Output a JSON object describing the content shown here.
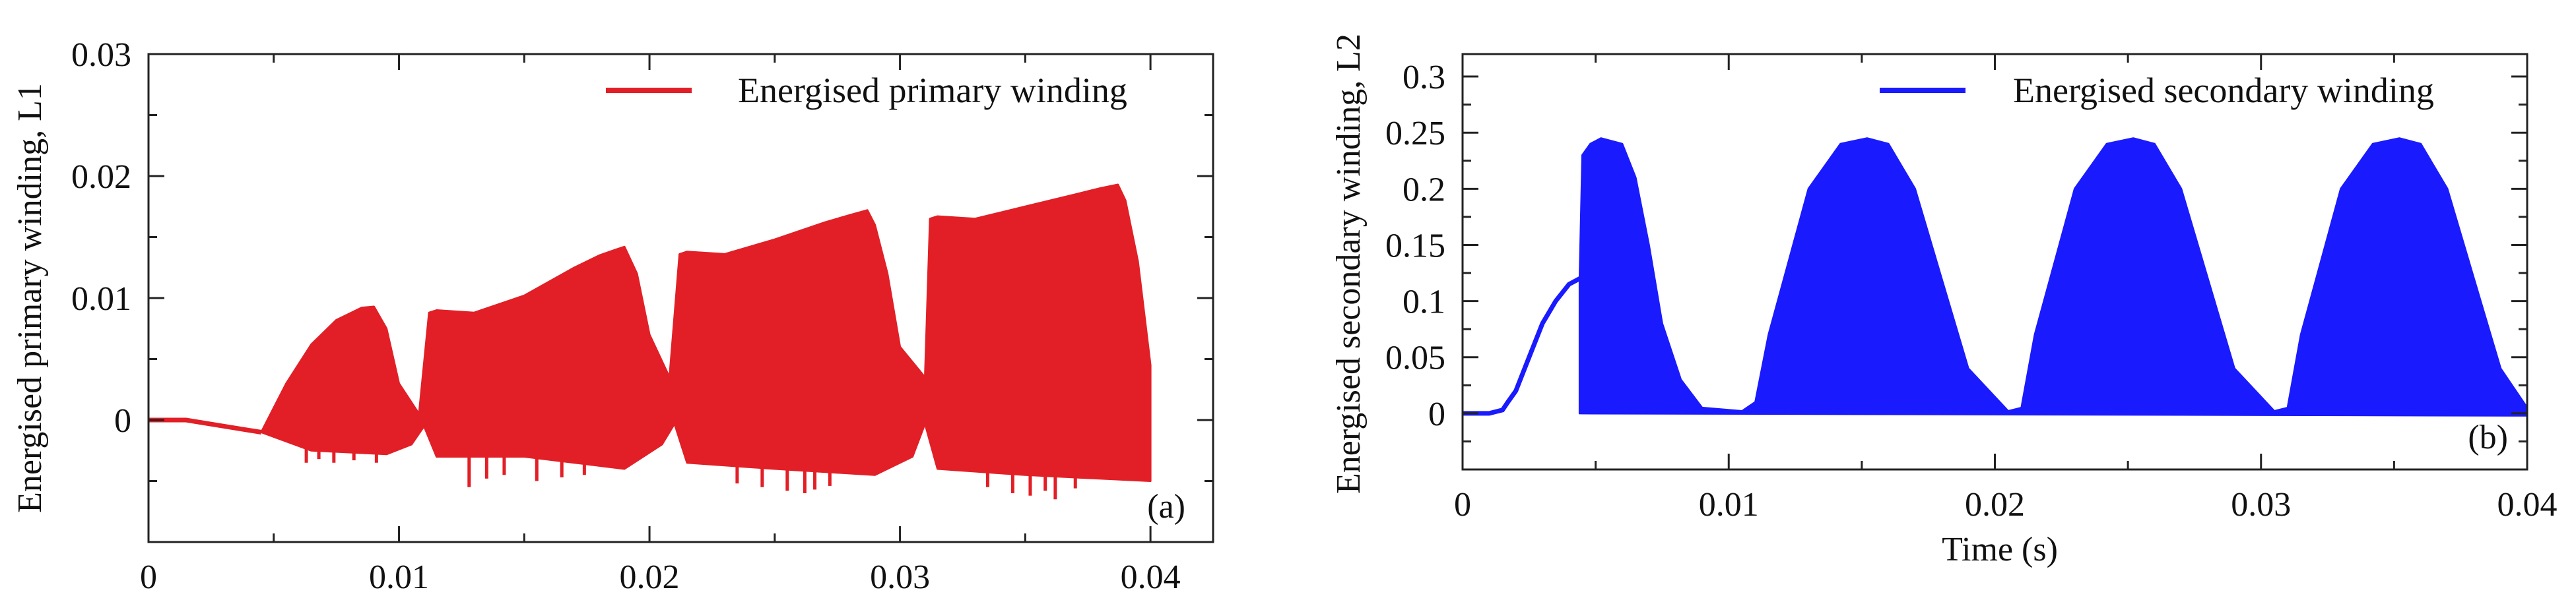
{
  "chart_data": [
    {
      "type": "line",
      "panel_label": "(a)",
      "title": "",
      "xlabel": "",
      "ylabel": "Energised primary winding, L1",
      "xlim": [
        0,
        0.0425
      ],
      "ylim": [
        -0.01,
        0.03
      ],
      "xticks": [
        "0",
        "0.01",
        "0.02",
        "0.03",
        "0.04"
      ],
      "yticks": [
        "0",
        "0.01",
        "0.02",
        "0.03"
      ],
      "xtick_values": [
        0,
        0.01,
        0.02,
        0.03,
        0.04
      ],
      "ytick_values": [
        0,
        0.01,
        0.02,
        0.03
      ],
      "legend_position": "top-right",
      "grid": false,
      "color": "#e21f26",
      "series": [
        {
          "name": "Energised primary winding",
          "description": "smooth line from 0 to about 0.0045 s, then dense oscillation between lower and upper envelopes",
          "line_x": [
            0,
            0.0015,
            0.003,
            0.0045
          ],
          "line_y": [
            0,
            0,
            -0.0005,
            -0.001
          ],
          "band_upper_x": [
            0.0045,
            0.0055,
            0.0065,
            0.0075,
            0.0085,
            0.009,
            0.0095,
            0.01,
            0.0108,
            0.0112,
            0.0115,
            0.013,
            0.015,
            0.017,
            0.018,
            0.0187,
            0.019,
            0.0195,
            0.02,
            0.0208,
            0.0212,
            0.0215,
            0.023,
            0.025,
            0.027,
            0.028,
            0.0287,
            0.029,
            0.0295,
            0.03,
            0.031,
            0.0312,
            0.0315,
            0.033,
            0.035,
            0.037,
            0.038,
            0.0387,
            0.039,
            0.0395,
            0.04
          ],
          "band_upper_y": [
            -0.001,
            0.003,
            0.0062,
            0.0082,
            0.0092,
            0.0093,
            0.0075,
            0.003,
            0.0005,
            0.0088,
            0.009,
            0.0088,
            0.0102,
            0.0125,
            0.0135,
            0.014,
            0.0142,
            0.012,
            0.007,
            0.0035,
            0.0136,
            0.0138,
            0.0136,
            0.0148,
            0.0162,
            0.0168,
            0.0172,
            0.016,
            0.012,
            0.006,
            0.0035,
            0.0165,
            0.0167,
            0.0165,
            0.0175,
            0.0185,
            0.019,
            0.0193,
            0.018,
            0.013,
            0.0045
          ],
          "band_lower_x": [
            0.0045,
            0.0065,
            0.0095,
            0.0105,
            0.011,
            0.0115,
            0.015,
            0.019,
            0.0205,
            0.021,
            0.0215,
            0.025,
            0.029,
            0.0305,
            0.031,
            0.0315,
            0.035,
            0.04
          ],
          "band_lower_y": [
            -0.001,
            -0.0025,
            -0.0028,
            -0.002,
            -0.0005,
            -0.003,
            -0.003,
            -0.004,
            -0.002,
            -0.0003,
            -0.0035,
            -0.004,
            -0.0045,
            -0.003,
            -0.0003,
            -0.004,
            -0.0045,
            -0.005
          ],
          "spike_minima_x": [
            0.0063,
            0.0068,
            0.0074,
            0.0082,
            0.0091,
            0.0128,
            0.0135,
            0.0142,
            0.0155,
            0.0165,
            0.0174,
            0.0235,
            0.0245,
            0.0255,
            0.0262,
            0.0266,
            0.0272,
            0.0335,
            0.0345,
            0.0352,
            0.0358,
            0.0362,
            0.037
          ],
          "spike_minima_y": [
            -0.0035,
            -0.0032,
            -0.0035,
            -0.0033,
            -0.0035,
            -0.0055,
            -0.0048,
            -0.0045,
            -0.005,
            -0.0047,
            -0.0045,
            -0.0052,
            -0.0055,
            -0.0058,
            -0.006,
            -0.0057,
            -0.0054,
            -0.0055,
            -0.006,
            -0.0062,
            -0.0058,
            -0.0065,
            -0.0056
          ]
        }
      ]
    },
    {
      "type": "line",
      "panel_label": "(b)",
      "title": "",
      "xlabel": "Time (s)",
      "ylabel": "Energised secondary winding, L2",
      "xlim": [
        0,
        0.04
      ],
      "ylim": [
        -0.05,
        0.32
      ],
      "xticks": [
        "0",
        "0.01",
        "0.02",
        "0.03",
        "0.04"
      ],
      "yticks": [
        "0",
        "0.05",
        "0.1",
        "0.15",
        "0.2",
        "0.25",
        "0.3"
      ],
      "xtick_values": [
        0,
        0.01,
        0.02,
        0.03,
        0.04
      ],
      "ytick_values": [
        0,
        0.05,
        0.1,
        0.15,
        0.2,
        0.25,
        0.3
      ],
      "legend_position": "top-right",
      "grid": false,
      "color": "#1a1aff",
      "series": [
        {
          "name": "Energised secondary winding",
          "description": "smooth rise from 0 to about 0.12 at 0.0044 s, then dense oscillation filling four half-sine lobes of peak about 0.245",
          "line_x": [
            0,
            0.001,
            0.0015,
            0.0017,
            0.002,
            0.0025,
            0.003,
            0.0035,
            0.004,
            0.0044
          ],
          "line_y": [
            0,
            0,
            0.003,
            0.01,
            0.02,
            0.05,
            0.08,
            0.1,
            0.115,
            0.12
          ],
          "band_upper_x": [
            0.0044,
            0.0045,
            0.0048,
            0.0052,
            0.006,
            0.0065,
            0.007,
            0.0075,
            0.0082,
            0.009,
            0.0105,
            0.011,
            0.0115,
            0.013,
            0.0142,
            0.0152,
            0.016,
            0.017,
            0.018,
            0.019,
            0.0205,
            0.021,
            0.0215,
            0.023,
            0.0242,
            0.0252,
            0.026,
            0.027,
            0.028,
            0.029,
            0.0305,
            0.031,
            0.0315,
            0.033,
            0.0342,
            0.0352,
            0.036,
            0.037,
            0.038,
            0.039,
            0.04
          ],
          "band_upper_y": [
            0.12,
            0.23,
            0.24,
            0.245,
            0.24,
            0.21,
            0.15,
            0.08,
            0.03,
            0.005,
            0.002,
            0.01,
            0.07,
            0.2,
            0.24,
            0.245,
            0.24,
            0.2,
            0.12,
            0.04,
            0.002,
            0.005,
            0.07,
            0.2,
            0.24,
            0.245,
            0.24,
            0.2,
            0.12,
            0.04,
            0.002,
            0.005,
            0.07,
            0.2,
            0.24,
            0.245,
            0.24,
            0.2,
            0.12,
            0.04,
            0.005
          ],
          "band_lower_x": [
            0.0044,
            0.04
          ],
          "band_lower_y": [
            0,
            -0.002
          ]
        }
      ]
    }
  ]
}
